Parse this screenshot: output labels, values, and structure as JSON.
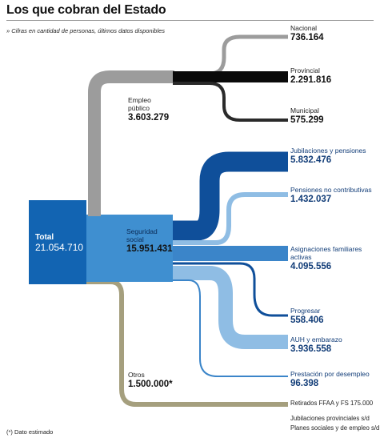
{
  "title": "Los que cobran del Estado",
  "subtitle": "» Cifras en cantidad de personas, últimos datos disponibles",
  "colors": {
    "empleo": "#9c9c9c",
    "provincial": "#0a0a0a",
    "municipal": "#2a2a2a",
    "seguridad_dark": "#0f4f9a",
    "seguridad_mid": "#3b85c9",
    "seguridad_light": "#8fbde4",
    "otros": "#a59f7e",
    "total_box": "#1264b2",
    "seg_box": "#3f8fd0"
  },
  "total": {
    "label": "Total",
    "value": "21.054.710"
  },
  "empleo": {
    "label_line1": "Empleo",
    "label_line2": "público",
    "value": "3.603.279",
    "nacional": {
      "label": "Nacional",
      "value": "736.164"
    },
    "provincial": {
      "label": "Provincial",
      "value": "2.291.816"
    },
    "municipal": {
      "label": "Municipal",
      "value": "575.299"
    }
  },
  "seguridad": {
    "label_line1": "Seguridad",
    "label_line2": "social",
    "value": "15.951.431",
    "jubilaciones": {
      "label": "Jubilaciones y pensiones",
      "value": "5.832.476"
    },
    "no_contributivas": {
      "label": "Pensiones no contributivas",
      "value": "1.432.037"
    },
    "asignaciones": {
      "label_line1": "Asignaciones familiares",
      "label_line2": "activas",
      "value": "4.095.556"
    },
    "progresar": {
      "label": "Progresar",
      "value": "558.406"
    },
    "auh": {
      "label": "AUH y embarazo",
      "value": "3.936.558"
    },
    "desempleo": {
      "label": "Prestación por desempleo",
      "value": "96.398"
    }
  },
  "otros": {
    "label": "Otros",
    "value": "1.500.000*",
    "retirados": "Retirados FFAA y FS 175.000",
    "jubilaciones_prov": "Jubilaciones provinciales s/d",
    "planes": "Planes sociales y de empleo s/d"
  },
  "note": "(*) Dato estimado"
}
